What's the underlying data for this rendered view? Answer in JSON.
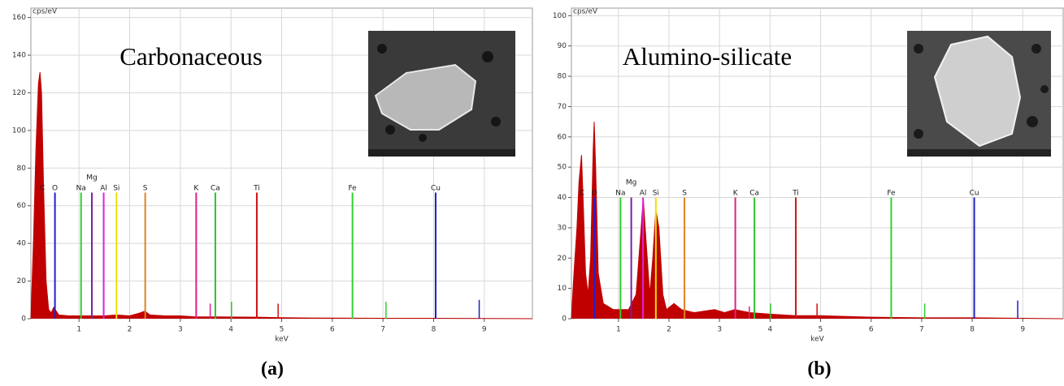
{
  "chart_data": [
    {
      "type": "area",
      "title": "Carbonaceous",
      "ylabel": "cps/eV",
      "xlabel": "keV",
      "caption": "(a)",
      "color": "#c00000",
      "xlim": [
        0.05,
        9.95
      ],
      "ylim": [
        0,
        165
      ],
      "xticks": [
        1,
        2,
        3,
        4,
        5,
        6,
        7,
        8,
        9
      ],
      "yticks": [
        0,
        20,
        40,
        60,
        80,
        100,
        120,
        140,
        160
      ],
      "grid": true,
      "x": [
        0.05,
        0.1,
        0.15,
        0.2,
        0.23,
        0.26,
        0.3,
        0.35,
        0.4,
        0.45,
        0.5,
        0.55,
        0.6,
        0.8,
        1.0,
        1.2,
        1.5,
        1.74,
        2.0,
        2.2,
        2.3,
        2.4,
        2.7,
        3.0,
        3.3,
        3.7,
        4.5,
        5,
        6,
        7,
        8,
        9.95
      ],
      "values": [
        0,
        40,
        90,
        125,
        131,
        120,
        70,
        20,
        5,
        3,
        6,
        4,
        2,
        1.5,
        1.5,
        1.5,
        1.5,
        2,
        1.5,
        3,
        4,
        2,
        1.5,
        1.5,
        1,
        1,
        0.8,
        0.5,
        0.3,
        0.2,
        0.2,
        0
      ],
      "markers": [
        {
          "label": "C",
          "energy": 0.277,
          "height": 67,
          "color": "#c00000"
        },
        {
          "label": "O",
          "energy": 0.525,
          "height": 67,
          "color": "#2020d0"
        },
        {
          "label": "Na",
          "energy": 1.041,
          "height": 67,
          "color": "#33cc33"
        },
        {
          "label": "Mg",
          "energy": 1.254,
          "height": 67,
          "color": "#7a1fa2"
        },
        {
          "label": "Al",
          "energy": 1.487,
          "height": 67,
          "color": "#e020e0"
        },
        {
          "label": "Si",
          "energy": 1.74,
          "height": 67,
          "color": "#f0e000"
        },
        {
          "label": "S",
          "energy": 2.307,
          "height": 67,
          "color": "#e08020"
        },
        {
          "label": "K",
          "energy": 3.313,
          "height": 67,
          "color": "#e0208a"
        },
        {
          "label": "Ca",
          "energy": 3.691,
          "height": 67,
          "color": "#30c030"
        },
        {
          "label": "Ti",
          "energy": 4.51,
          "height": 67,
          "color": "#d01010"
        },
        {
          "label": "Fe",
          "energy": 6.398,
          "height": 67,
          "color": "#30d030"
        },
        {
          "label": "Cu",
          "energy": 8.04,
          "height": 67,
          "color": "#2020c0"
        }
      ],
      "minor_markers": [
        {
          "energy": 3.59,
          "height": 8,
          "color": "#e0208a"
        },
        {
          "energy": 4.01,
          "height": 9,
          "color": "#30c030"
        },
        {
          "energy": 4.93,
          "height": 8,
          "color": "#d01010"
        },
        {
          "energy": 7.06,
          "height": 9,
          "color": "#30d030"
        },
        {
          "energy": 8.9,
          "height": 10,
          "color": "#2020c0"
        }
      ]
    },
    {
      "type": "area",
      "title": "Alumino-silicate",
      "ylabel": "cps/eV",
      "xlabel": "keV",
      "caption": "(b)",
      "color": "#c00000",
      "xlim": [
        0.07,
        9.8
      ],
      "ylim": [
        0,
        102.5
      ],
      "xticks": [
        1,
        2,
        3,
        4,
        5,
        6,
        7,
        8,
        9
      ],
      "yticks": [
        0,
        10,
        20,
        30,
        40,
        50,
        60,
        70,
        80,
        90,
        100
      ],
      "grid": true,
      "x": [
        0.07,
        0.12,
        0.18,
        0.22,
        0.27,
        0.3,
        0.35,
        0.4,
        0.45,
        0.5,
        0.52,
        0.55,
        0.6,
        0.7,
        0.9,
        1.04,
        1.2,
        1.35,
        1.45,
        1.49,
        1.55,
        1.62,
        1.68,
        1.74,
        1.8,
        1.88,
        1.95,
        2.1,
        2.25,
        2.5,
        2.9,
        3.1,
        3.3,
        3.6,
        4,
        4.5,
        5,
        6,
        7,
        8,
        9.8
      ],
      "values": [
        0,
        15,
        30,
        45,
        54,
        40,
        15,
        8,
        20,
        55,
        65,
        50,
        15,
        5,
        3,
        3,
        3,
        8,
        30,
        40,
        25,
        8,
        20,
        36,
        30,
        8,
        3,
        5,
        3,
        2,
        3,
        2,
        3,
        2,
        1.5,
        1,
        1,
        0.5,
        0.3,
        0.3,
        0
      ],
      "markers": [
        {
          "label": "C",
          "energy": 0.277,
          "height": 40,
          "color": "#c00000"
        },
        {
          "label": "O",
          "energy": 0.525,
          "height": 40,
          "color": "#2020d0"
        },
        {
          "label": "Na",
          "energy": 1.041,
          "height": 40,
          "color": "#33cc33"
        },
        {
          "label": "Mg",
          "energy": 1.254,
          "height": 40,
          "color": "#7a1fa2"
        },
        {
          "label": "Al",
          "energy": 1.487,
          "height": 40,
          "color": "#e020e0"
        },
        {
          "label": "Si",
          "energy": 1.74,
          "height": 40,
          "color": "#f0e000"
        },
        {
          "label": "S",
          "energy": 2.307,
          "height": 40,
          "color": "#e08020"
        },
        {
          "label": "K",
          "energy": 3.313,
          "height": 40,
          "color": "#e0208a"
        },
        {
          "label": "Ca",
          "energy": 3.691,
          "height": 40,
          "color": "#30c030"
        },
        {
          "label": "Ti",
          "energy": 4.51,
          "height": 40,
          "color": "#d01010"
        },
        {
          "label": "Fe",
          "energy": 6.398,
          "height": 40,
          "color": "#30d030"
        },
        {
          "label": "Cu",
          "energy": 8.04,
          "height": 40,
          "color": "#2020c0"
        }
      ],
      "minor_markers": [
        {
          "energy": 3.59,
          "height": 4,
          "color": "#e0208a"
        },
        {
          "energy": 4.01,
          "height": 5,
          "color": "#30c030"
        },
        {
          "energy": 4.93,
          "height": 5,
          "color": "#d01010"
        },
        {
          "energy": 7.06,
          "height": 5,
          "color": "#30d030"
        },
        {
          "energy": 8.9,
          "height": 6,
          "color": "#2020c0"
        }
      ]
    }
  ]
}
